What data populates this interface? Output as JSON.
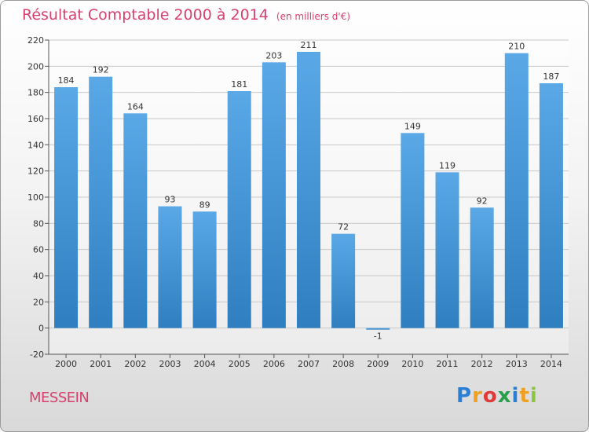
{
  "title": "Résultat Comptable 2000 à 2014",
  "unit": "(en milliers d'€)",
  "commune": "MESSEIN",
  "logo": {
    "letters": [
      "P",
      "r",
      "o",
      "x",
      "i",
      "t",
      "i"
    ],
    "colors": [
      "#2a7fd4",
      "#f0a020",
      "#e03a3a",
      "#2a9e4a",
      "#2a7fd4",
      "#f0a020",
      "#8cc63f"
    ]
  },
  "colors": {
    "title": "#d8406e",
    "bar_top": "#5aa8e6",
    "bar_bottom": "#2f7fc0"
  },
  "chart_data": {
    "type": "bar",
    "categories": [
      "2000",
      "2001",
      "2002",
      "2003",
      "2004",
      "2005",
      "2006",
      "2007",
      "2008",
      "2009",
      "2010",
      "2011",
      "2012",
      "2013",
      "2014"
    ],
    "values": [
      184,
      192,
      164,
      93,
      89,
      181,
      203,
      211,
      72,
      -1,
      149,
      119,
      92,
      210,
      187
    ],
    "ylim": [
      -20,
      220
    ],
    "yticks": [
      -20,
      0,
      20,
      40,
      60,
      80,
      100,
      120,
      140,
      160,
      180,
      200,
      220
    ],
    "grid": true,
    "legend": "none"
  }
}
